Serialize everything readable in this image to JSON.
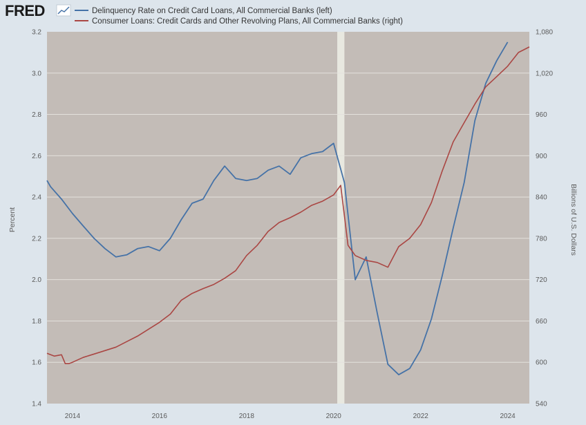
{
  "header": {
    "logo_text": "FRED"
  },
  "chart_data": {
    "type": "line",
    "xlim": [
      "2013-06-01",
      "2024-07-01"
    ],
    "xticks": [
      "2014",
      "2016",
      "2018",
      "2020",
      "2022",
      "2024"
    ],
    "grid": true,
    "legend_position": "top-left",
    "recession_shading": {
      "start": "2020-02-01",
      "end": "2020-04-01",
      "color": "#e8e8e0"
    },
    "left_axis": {
      "label": "Percent",
      "ylim": [
        1.4,
        3.2
      ],
      "ticks": [
        "1.4",
        "1.6",
        "1.8",
        "2.0",
        "2.2",
        "2.4",
        "2.6",
        "2.8",
        "3.0",
        "3.2"
      ]
    },
    "right_axis": {
      "label": "Billions of U.S. Dollars",
      "ylim": [
        540,
        1080
      ],
      "ticks": [
        "540",
        "600",
        "660",
        "720",
        "780",
        "840",
        "900",
        "960",
        "1,020",
        "1,080"
      ]
    },
    "series": [
      {
        "name": "Delinquency Rate on Credit Card Loans, All Commercial Banks (left)",
        "axis": "left",
        "color": "#4572a7",
        "x": [
          "2013-06-01",
          "2013-07-01",
          "2013-10-01",
          "2014-01-01",
          "2014-04-01",
          "2014-07-01",
          "2014-10-01",
          "2015-01-01",
          "2015-04-01",
          "2015-07-01",
          "2015-10-01",
          "2016-01-01",
          "2016-04-01",
          "2016-07-01",
          "2016-10-01",
          "2017-01-01",
          "2017-04-01",
          "2017-07-01",
          "2017-10-01",
          "2018-01-01",
          "2018-04-01",
          "2018-07-01",
          "2018-10-01",
          "2019-01-01",
          "2019-04-01",
          "2019-07-01",
          "2019-10-01",
          "2020-01-01",
          "2020-04-01",
          "2020-07-01",
          "2020-10-01",
          "2021-01-01",
          "2021-04-01",
          "2021-07-01",
          "2021-10-01",
          "2022-01-01",
          "2022-04-01",
          "2022-07-01",
          "2022-10-01",
          "2023-01-01",
          "2023-04-01",
          "2023-07-01",
          "2023-10-01",
          "2024-01-01"
        ],
        "values": [
          2.48,
          2.45,
          2.39,
          2.32,
          2.26,
          2.2,
          2.15,
          2.11,
          2.12,
          2.15,
          2.16,
          2.14,
          2.2,
          2.29,
          2.37,
          2.39,
          2.48,
          2.55,
          2.49,
          2.48,
          2.49,
          2.53,
          2.55,
          2.51,
          2.59,
          2.61,
          2.62,
          2.66,
          2.47,
          2.0,
          2.11,
          1.84,
          1.59,
          1.54,
          1.57,
          1.66,
          1.81,
          2.02,
          2.25,
          2.47,
          2.77,
          2.95,
          3.06,
          3.15
        ]
      },
      {
        "name": "Consumer Loans: Credit Cards and Other Revolving Plans, All Commercial Banks (right)",
        "axis": "right",
        "color": "#aa4643",
        "x": [
          "2013-06-01",
          "2013-08-01",
          "2013-10-01",
          "2013-11-01",
          "2013-12-01",
          "2014-01-01",
          "2014-04-01",
          "2014-07-01",
          "2014-10-01",
          "2015-01-01",
          "2015-04-01",
          "2015-07-01",
          "2015-10-01",
          "2016-01-01",
          "2016-04-01",
          "2016-07-01",
          "2016-10-01",
          "2017-01-01",
          "2017-04-01",
          "2017-07-01",
          "2017-10-01",
          "2018-01-01",
          "2018-04-01",
          "2018-07-01",
          "2018-10-01",
          "2019-01-01",
          "2019-04-01",
          "2019-07-01",
          "2019-10-01",
          "2020-01-01",
          "2020-03-01",
          "2020-05-01",
          "2020-07-01",
          "2020-10-01",
          "2021-01-01",
          "2021-04-01",
          "2021-07-01",
          "2021-10-01",
          "2022-01-01",
          "2022-04-01",
          "2022-07-01",
          "2022-10-01",
          "2023-01-01",
          "2023-04-01",
          "2023-07-01",
          "2023-10-01",
          "2024-01-01",
          "2024-04-01",
          "2024-07-01"
        ],
        "values": [
          613,
          609,
          611,
          598,
          598,
          600,
          607,
          612,
          617,
          622,
          630,
          638,
          648,
          658,
          670,
          690,
          700,
          707,
          713,
          722,
          733,
          755,
          770,
          790,
          803,
          810,
          818,
          828,
          834,
          843,
          857,
          770,
          755,
          748,
          745,
          738,
          768,
          780,
          800,
          832,
          878,
          920,
          948,
          975,
          1000,
          1015,
          1030,
          1050,
          1058
        ]
      }
    ]
  }
}
